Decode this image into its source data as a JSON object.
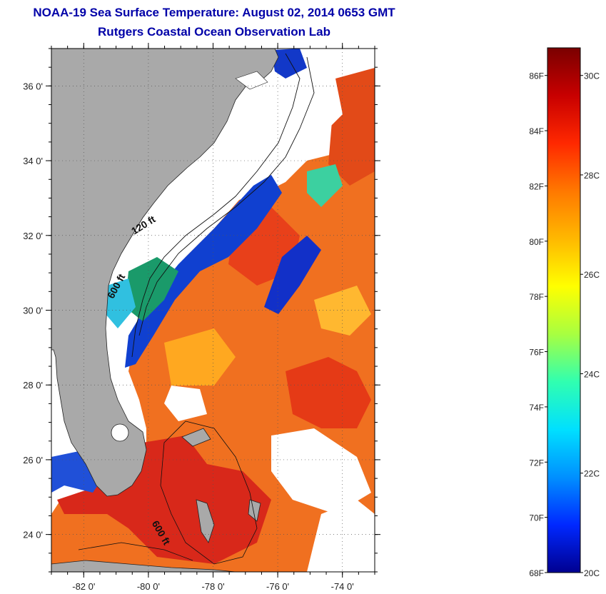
{
  "title": "NOAA-19 Sea Surface Temperature:  August 02, 2014 0653 GMT",
  "subtitle": "Rutgers Coastal Ocean Observation Lab",
  "map": {
    "lon_range": [
      -83,
      -73
    ],
    "lat_range": [
      23,
      37
    ],
    "lat_ticks": [
      {
        "value": 24,
        "label": "24 0'"
      },
      {
        "value": 26,
        "label": "26 0'"
      },
      {
        "value": 28,
        "label": "28 0'"
      },
      {
        "value": 30,
        "label": "30 0'"
      },
      {
        "value": 32,
        "label": "32 0'"
      },
      {
        "value": 34,
        "label": "34 0'"
      },
      {
        "value": 36,
        "label": "36 0'"
      }
    ],
    "lon_ticks": [
      {
        "value": -82,
        "label": "-82 0'"
      },
      {
        "value": -80,
        "label": "-80 0'"
      },
      {
        "value": -78,
        "label": "-78 0'"
      },
      {
        "value": -76,
        "label": "-76 0'"
      },
      {
        "value": -74,
        "label": "-74 0'"
      }
    ],
    "contour_labels": [
      {
        "text": "120 ft",
        "lon": -80.1,
        "lat": 32.2,
        "rotate": -32
      },
      {
        "text": "600 ft",
        "lon": -80.9,
        "lat": 30.6,
        "rotate": -62
      },
      {
        "text": "600 ft",
        "lon": -79.7,
        "lat": 24.0,
        "rotate": 60
      }
    ],
    "colors": {
      "land": "#a8a8a8",
      "cloud": "#ffffff",
      "warm": "#f26a10",
      "hot": "#e03018",
      "cool": "#0a28c8"
    }
  },
  "colorbar": {
    "fahrenheit_labels": [
      "86F",
      "84F",
      "82F",
      "80F",
      "78F",
      "76F",
      "74F",
      "72F",
      "70F",
      "68F"
    ],
    "celsius_labels": [
      "30C",
      "28C",
      "26C",
      "24C",
      "22C",
      "20C"
    ],
    "celsius_values": [
      30,
      28,
      26,
      24,
      22,
      20
    ],
    "f_top": 86,
    "f_bottom": 68,
    "gradient_colors": [
      "#7a0000",
      "#c80000",
      "#ff2800",
      "#ff7800",
      "#ffb800",
      "#ffff00",
      "#a8ff40",
      "#30ffb0",
      "#00e0ff",
      "#0090ff",
      "#0028ff",
      "#000090"
    ]
  }
}
